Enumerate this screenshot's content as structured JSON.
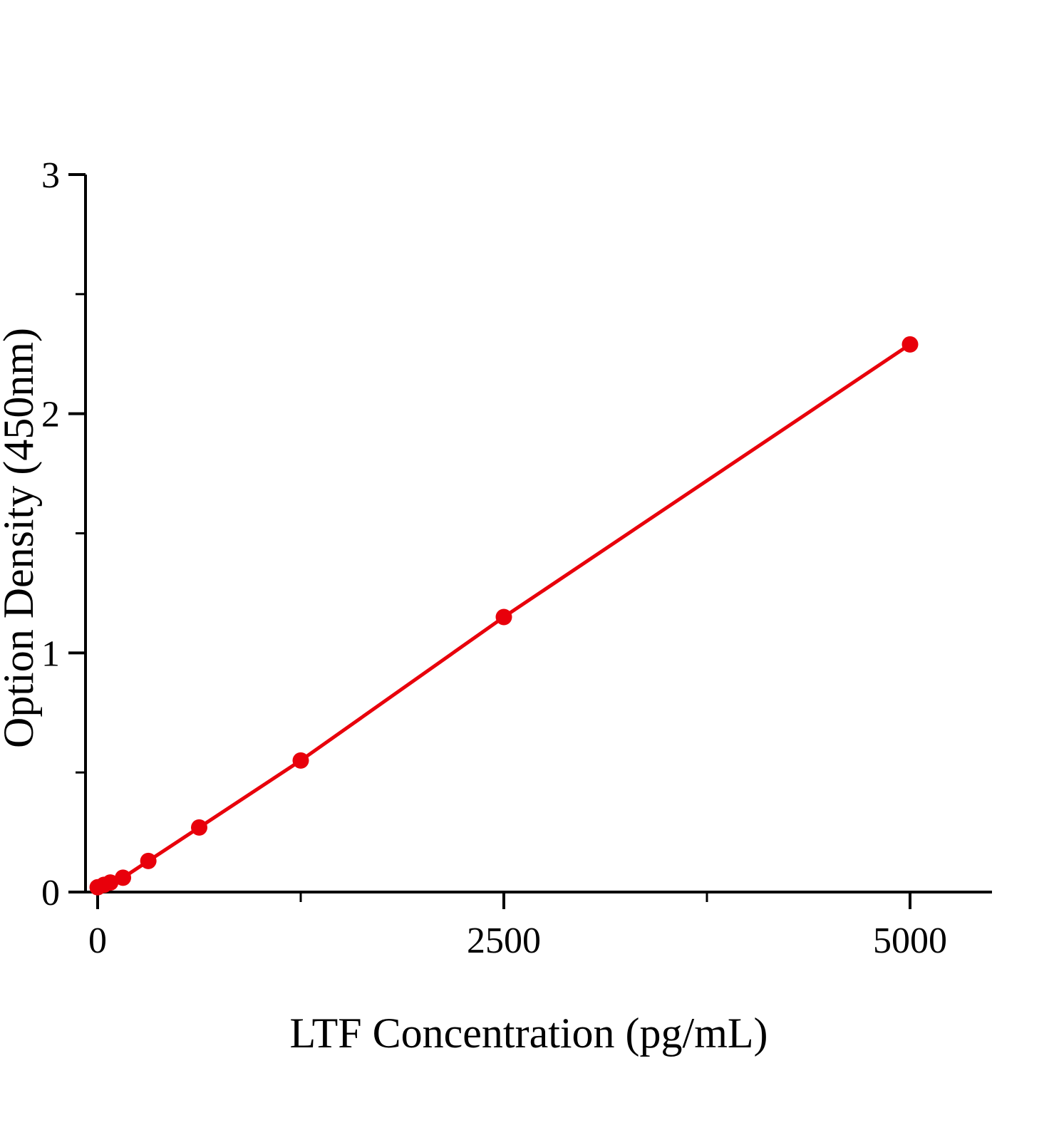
{
  "chart_data": {
    "type": "line",
    "title": "",
    "xlabel": "LTF  Concentration (pg/mL)",
    "ylabel": "Option Density (450nm)",
    "x": [
      0,
      39,
      78,
      156,
      312,
      625,
      1250,
      2500,
      5000
    ],
    "y": [
      0.02,
      0.03,
      0.04,
      0.06,
      0.13,
      0.27,
      0.55,
      1.15,
      2.29
    ],
    "xlim": [
      0,
      5500
    ],
    "ylim": [
      0,
      3
    ],
    "x_major_ticks": [
      0,
      2500,
      5000
    ],
    "x_minor_ticks": [
      1250,
      3750
    ],
    "y_major_ticks": [
      0,
      1,
      2,
      3
    ],
    "y_minor_ticks": [
      0.5,
      1.5,
      2.5
    ],
    "x_tick_labels": [
      "0",
      "2500",
      "5000"
    ],
    "y_tick_labels": [
      "0",
      "1",
      "2",
      "3"
    ],
    "line_color": "#e8000b",
    "marker_color": "#e8000b",
    "axis_color": "#000000",
    "marker": "circle",
    "grid": false,
    "legend": null
  }
}
